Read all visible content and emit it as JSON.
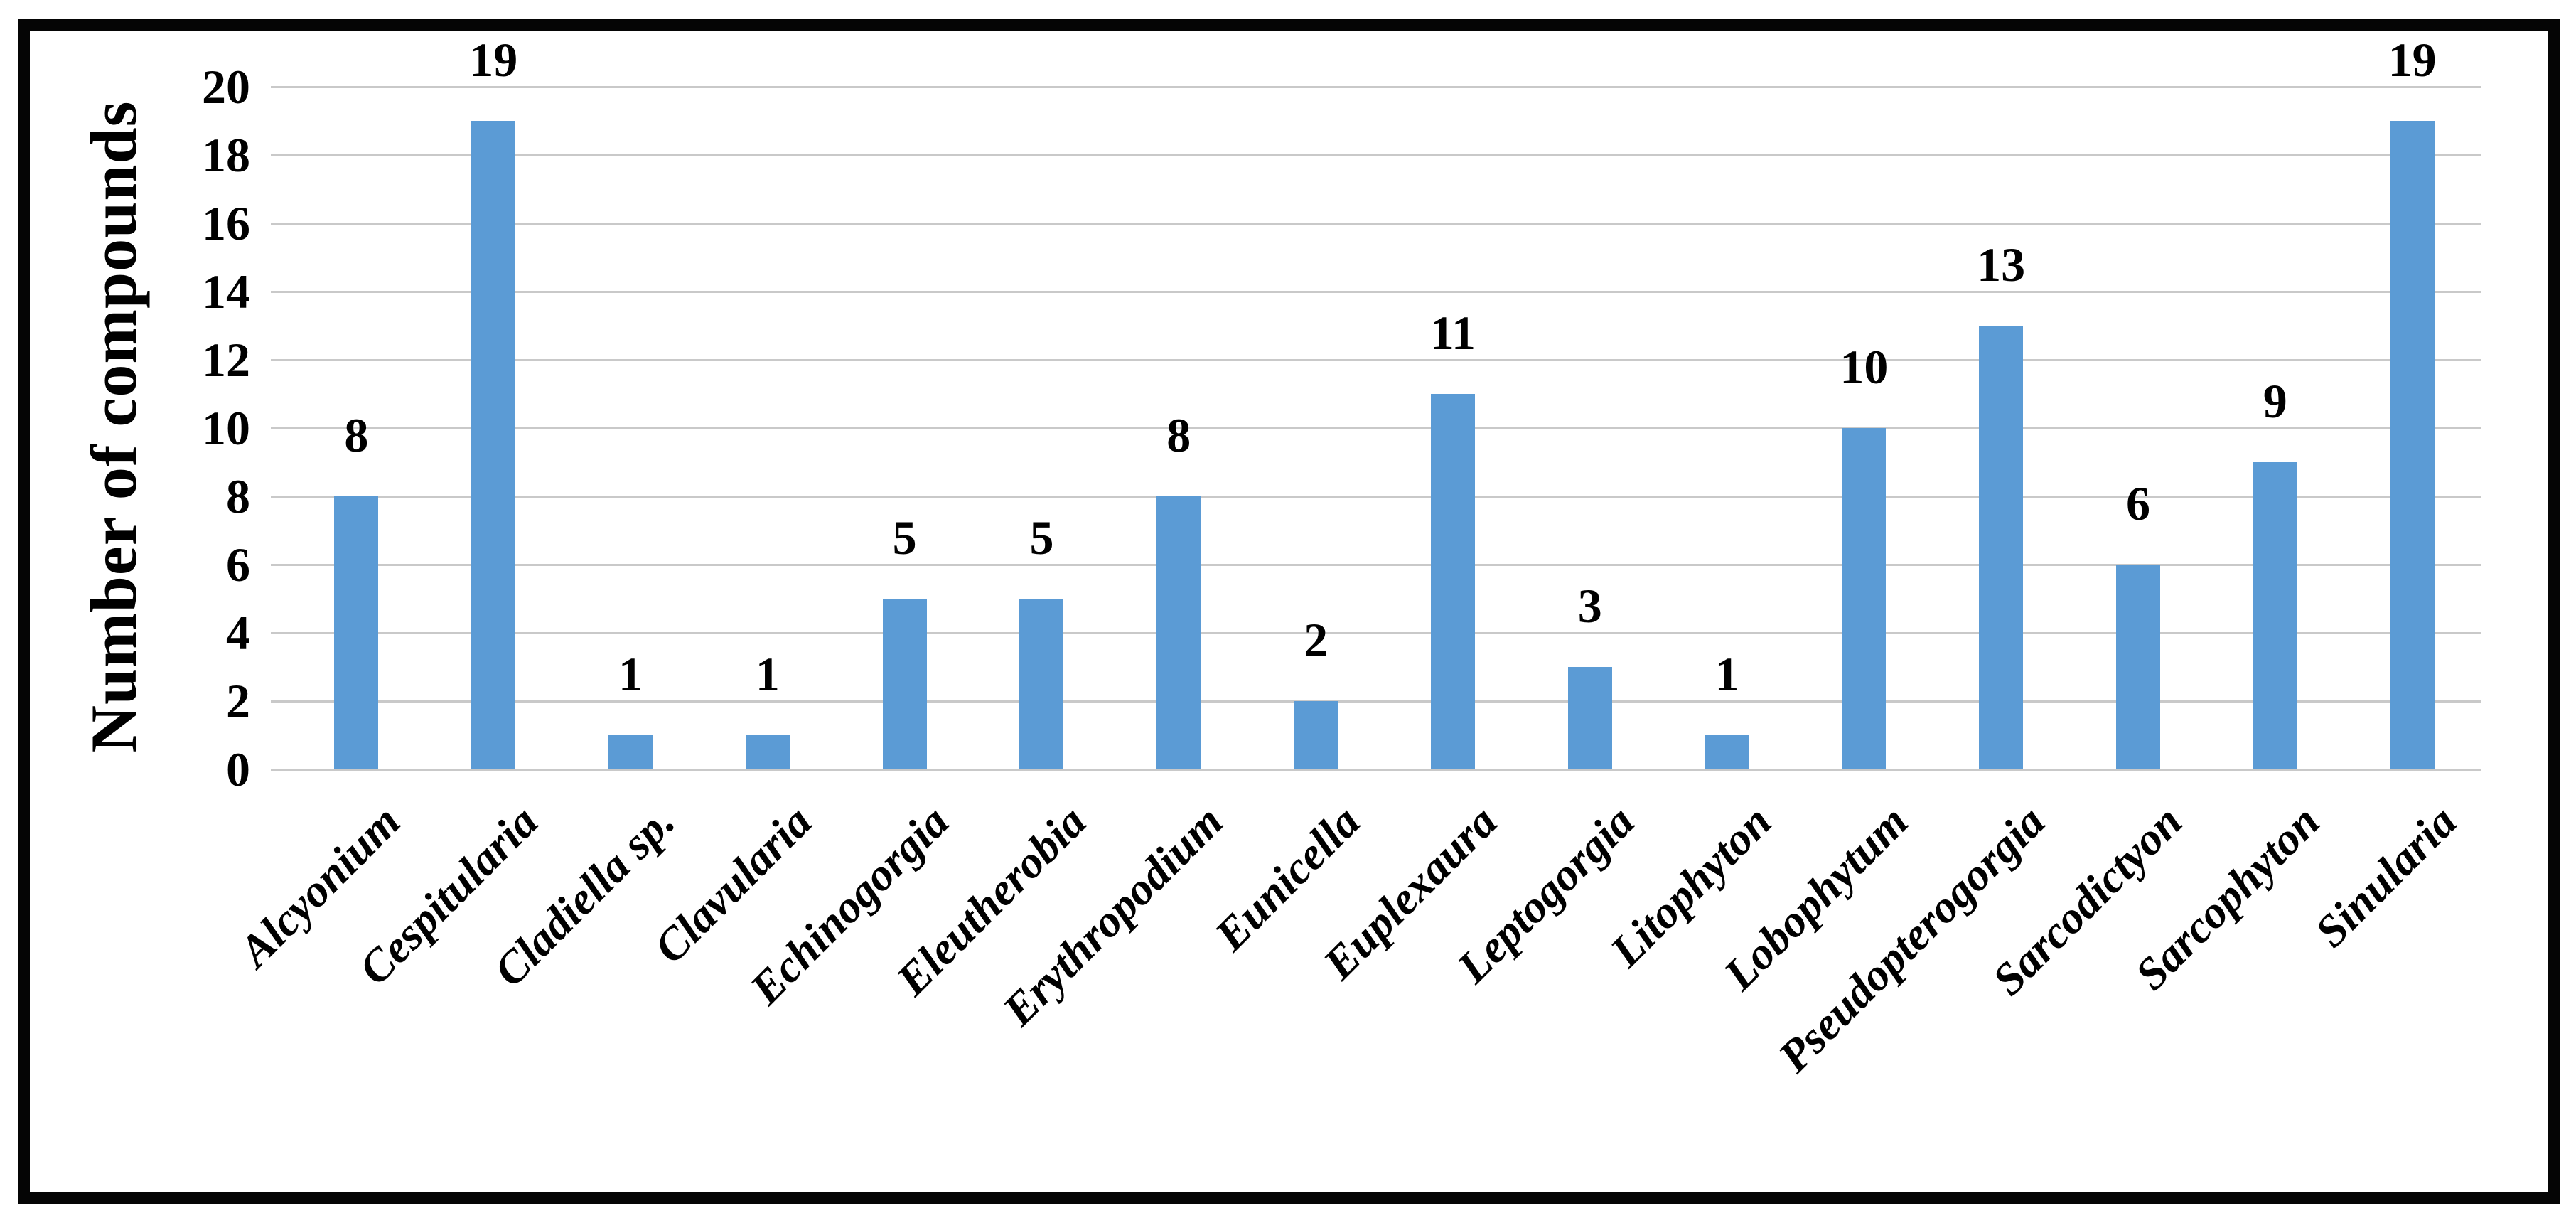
{
  "chart_data": {
    "type": "bar",
    "title": "",
    "xlabel": "",
    "ylabel": "Number of compounds",
    "categories": [
      "Alcyonium",
      "Cespitularia",
      "Cladiella sp.",
      "Clavularia",
      "Echinogorgia",
      "Eleutherobia",
      "Erythropodium",
      "Eunicella",
      "Euplexaura",
      "Leptogorgia",
      "Litophyton",
      "Lobophytum",
      "Pseudopterogorgia",
      "Sarcodictyon",
      "Sarcophyton",
      "Sinularia"
    ],
    "values": [
      8,
      19,
      1,
      1,
      5,
      5,
      8,
      2,
      11,
      3,
      1,
      10,
      13,
      6,
      9,
      19
    ],
    "data_labels": [
      "8",
      "19",
      "1",
      "1",
      "5",
      "5",
      "8",
      "2",
      "11",
      "3",
      "1",
      "10",
      "13",
      "6",
      "9",
      "19"
    ],
    "ylim": [
      0,
      20
    ],
    "yticks": [
      0,
      2,
      4,
      6,
      8,
      10,
      12,
      14,
      16,
      18,
      20
    ],
    "grid": "horizontal",
    "legend": "none",
    "bar_color": "#5b9bd5",
    "gridline_color": "#c9c9c9",
    "frame_color": "#050505",
    "text_color": "#000000",
    "x_label_rotation_deg": -45,
    "x_label_style": "bold italic serif",
    "background": "#ffffff"
  }
}
